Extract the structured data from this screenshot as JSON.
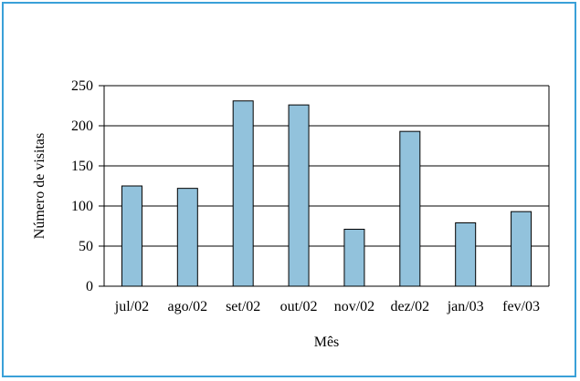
{
  "chart_data": {
    "type": "bar",
    "title": "",
    "xlabel": "Mês",
    "ylabel": "Número de visitas",
    "categories": [
      "jul/02",
      "ago/02",
      "set/02",
      "out/02",
      "nov/02",
      "dez/02",
      "jan/03",
      "fev/03"
    ],
    "values": [
      125,
      122,
      231,
      226,
      71,
      193,
      79,
      93
    ],
    "ylim": [
      0,
      250
    ],
    "yticks": [
      0,
      50,
      100,
      150,
      200,
      250
    ],
    "grid": true,
    "legend": "none",
    "colors": {
      "bar_fill": "#92c2dc",
      "bar_stroke": "#000000",
      "frame_border": "#3aa0d8"
    }
  }
}
